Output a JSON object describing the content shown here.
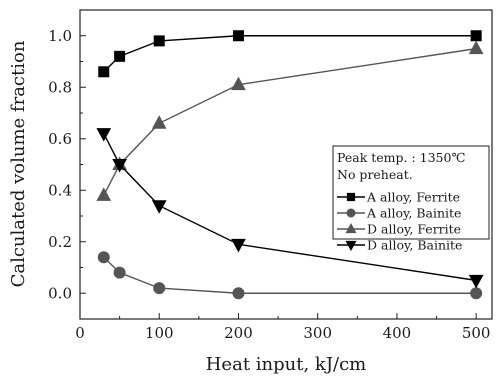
{
  "chart_data": {
    "type": "line",
    "xlabel": "Heat input, kJ/cm",
    "ylabel": "Calculated volume fraction",
    "xlim": [
      0,
      520
    ],
    "ylim": [
      -0.1,
      1.1
    ],
    "xticks": [
      0,
      100,
      200,
      300,
      400,
      500
    ],
    "xtick_labels": [
      "0",
      "100",
      "200",
      "300",
      "400",
      "500"
    ],
    "yticks": [
      0.0,
      0.2,
      0.4,
      0.6,
      0.8,
      1.0
    ],
    "ytick_labels": [
      "0.0",
      "0.2",
      "0.4",
      "0.6",
      "0.8",
      "1.0"
    ],
    "grid": false,
    "legend_position": "right",
    "annotations": [
      "Peak temp. : 1350℃",
      "No preheat."
    ],
    "x": [
      30,
      50,
      100,
      200,
      500
    ],
    "series": [
      {
        "name": "A alloy, Ferrite",
        "values": [
          0.86,
          0.92,
          0.98,
          1.0,
          1.0
        ],
        "marker": "square",
        "color": "#000000"
      },
      {
        "name": "A alloy, Bainite",
        "values": [
          0.14,
          0.08,
          0.02,
          0.0,
          0.0
        ],
        "marker": "circle",
        "color": "#555555"
      },
      {
        "name": "D alloy, Ferrite",
        "values": [
          0.38,
          0.5,
          0.66,
          0.81,
          0.95
        ],
        "marker": "triangle-up",
        "color": "#555555"
      },
      {
        "name": "D alloy, Bainite",
        "values": [
          0.62,
          0.5,
          0.34,
          0.19,
          0.05
        ],
        "marker": "triangle-down",
        "color": "#000000"
      }
    ]
  }
}
